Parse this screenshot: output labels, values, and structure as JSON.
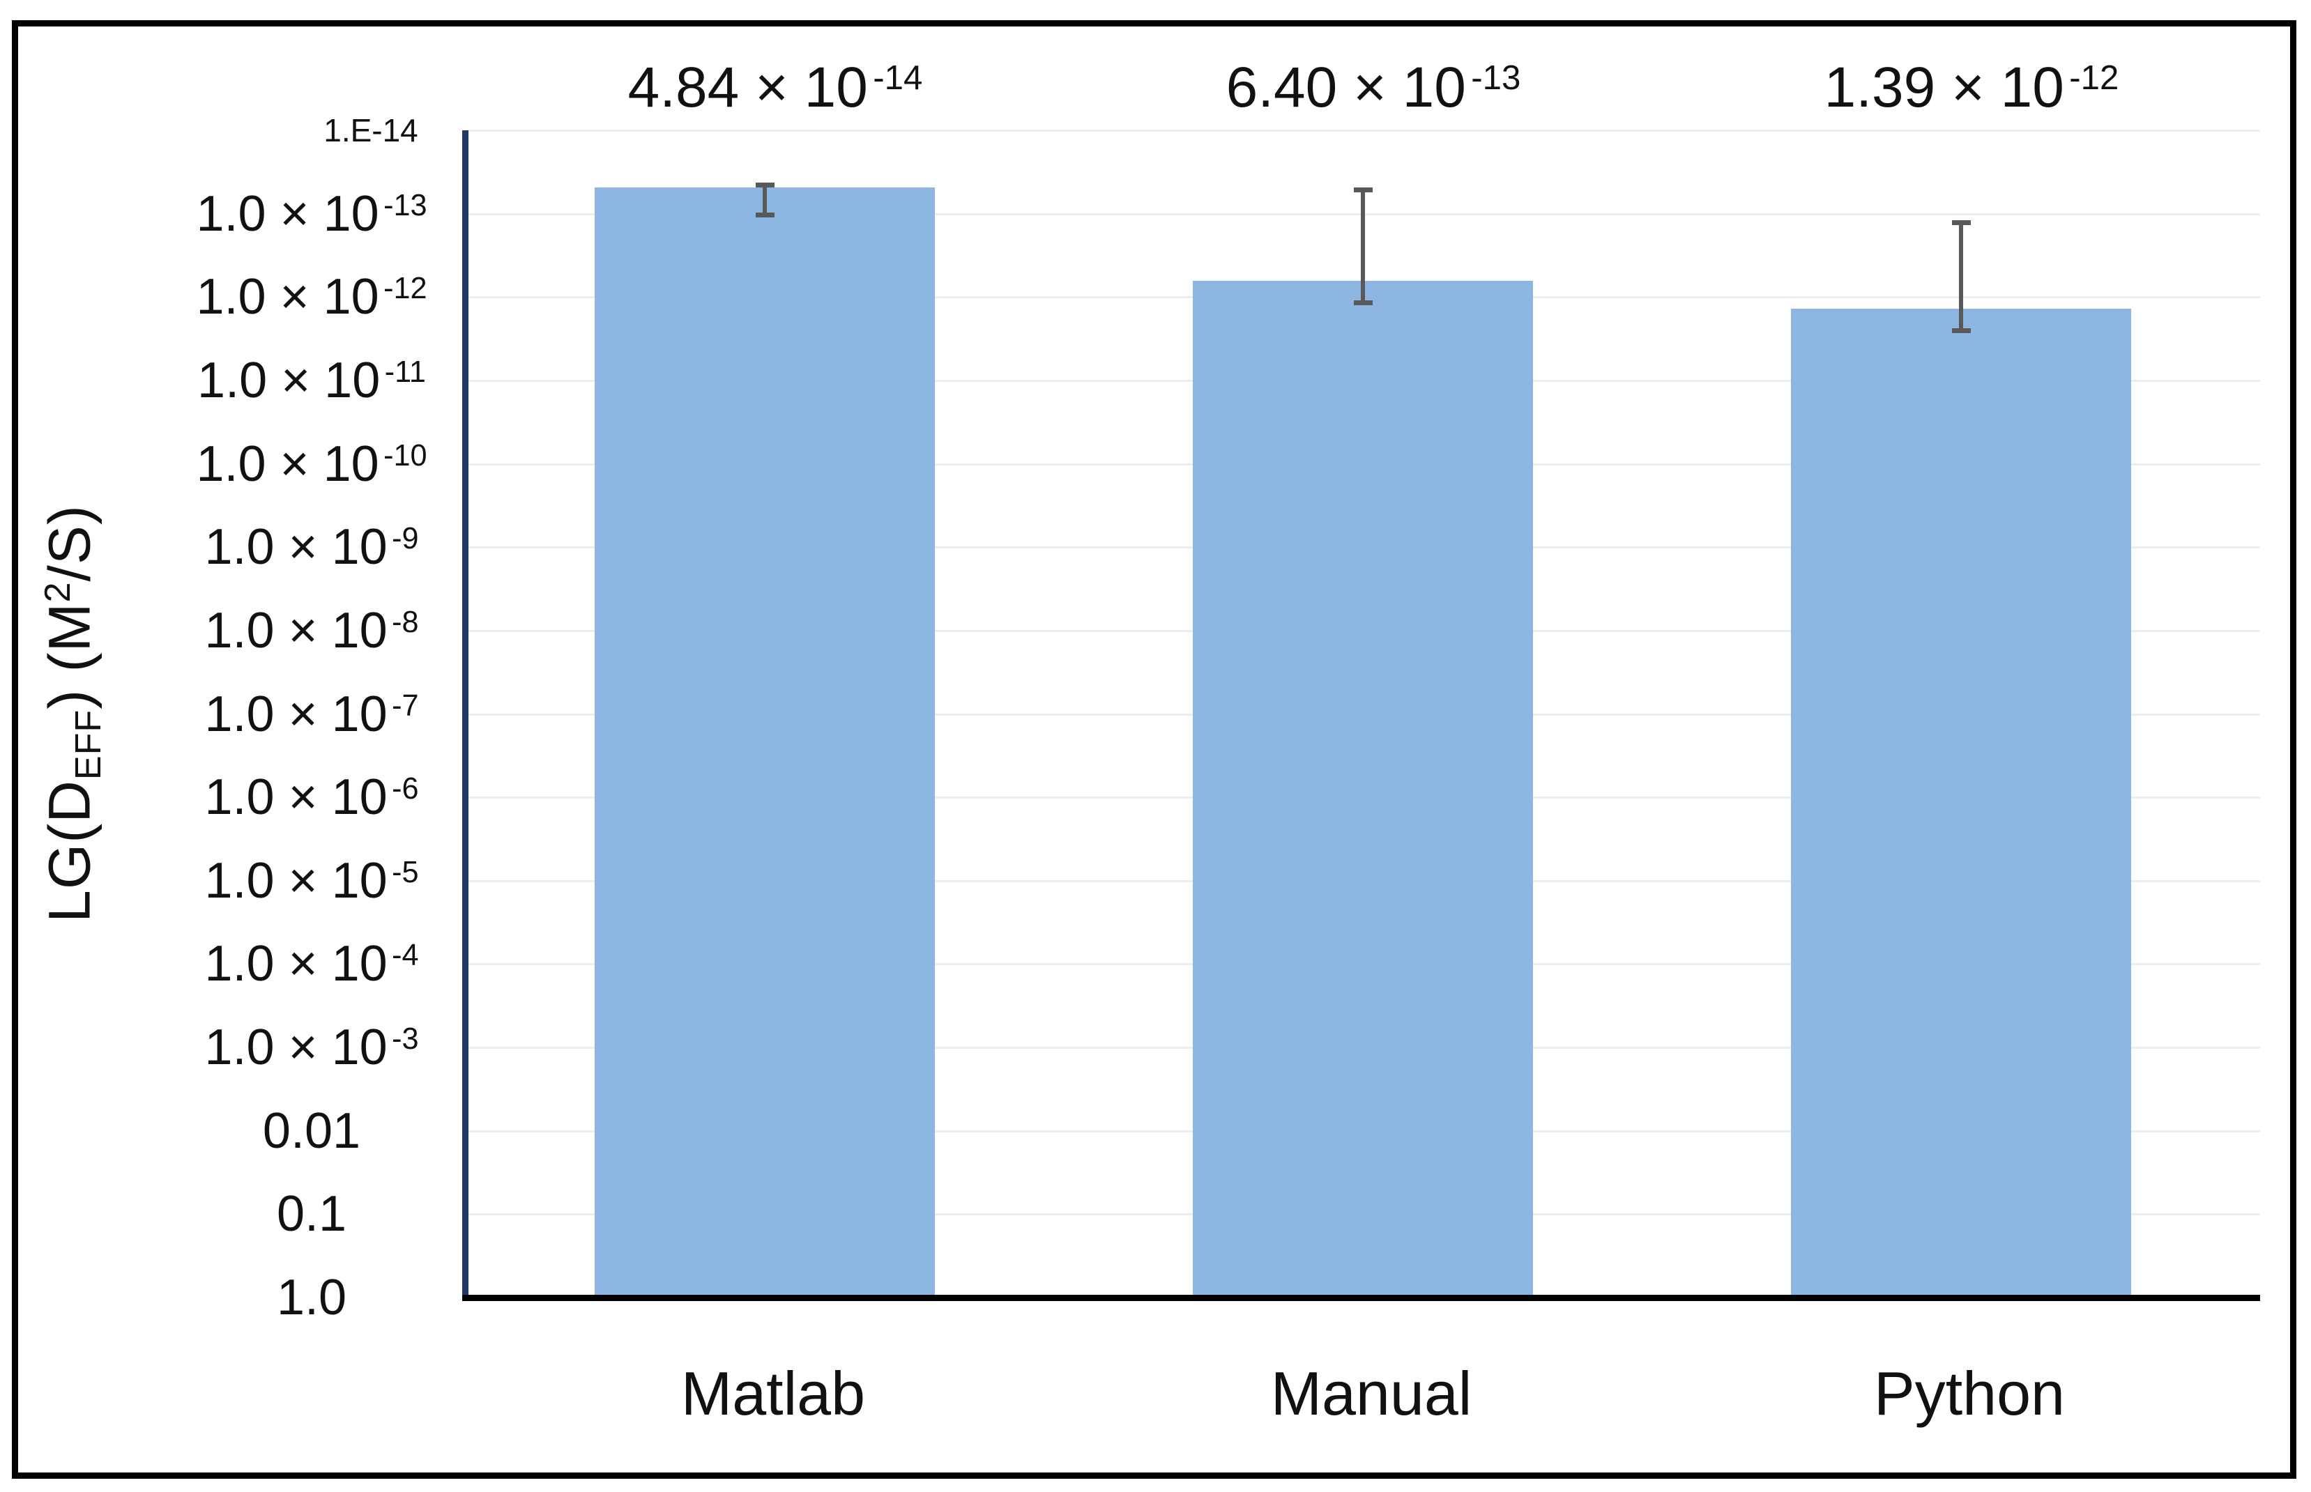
{
  "chart_data": {
    "type": "bar",
    "title": "",
    "categories": [
      "Matlab",
      "Manual",
      "Python"
    ],
    "values": [
      4.84e-14,
      6.4e-13,
      1.39e-12
    ],
    "value_labels": [
      {
        "mantissa": "4.84 × 10",
        "exponent": "-14"
      },
      {
        "mantissa": "6.40 × 10",
        "exponent": "-13"
      },
      {
        "mantissa": "1.39 × 10",
        "exponent": "-12"
      }
    ],
    "error_bars": [
      {
        "upper_value": 4.5e-14,
        "lower_value": 1.03e-13
      },
      {
        "upper_value": 5.2e-14,
        "lower_value": 1.18e-12
      },
      {
        "upper_value": 1.29e-13,
        "lower_value": 2.55e-12
      }
    ],
    "y_axis": {
      "scale": "log10-inverted",
      "top_value": 1e-14,
      "bottom_value": 1.0,
      "decades": 14,
      "title_parts": {
        "pre": "LG(D",
        "sub": "EFF",
        "mid": ") (M",
        "sup": "2",
        "post": "/S)"
      },
      "ticks": [
        {
          "text": "1.E-14",
          "exp": "",
          "small": true
        },
        {
          "text": "1.0 × 10",
          "exp": "-13",
          "small": false
        },
        {
          "text": "1.0 × 10",
          "exp": "-12",
          "small": false
        },
        {
          "text": "1.0 × 10",
          "exp": "-11",
          "small": false
        },
        {
          "text": "1.0 × 10",
          "exp": "-10",
          "small": false
        },
        {
          "text": "1.0 × 10",
          "exp": "-9",
          "small": false
        },
        {
          "text": "1.0 × 10",
          "exp": "-8",
          "small": false
        },
        {
          "text": "1.0 × 10",
          "exp": "-7",
          "small": false
        },
        {
          "text": "1.0 × 10",
          "exp": "-6",
          "small": false
        },
        {
          "text": "1.0 × 10",
          "exp": "-5",
          "small": false
        },
        {
          "text": "1.0 × 10",
          "exp": "-4",
          "small": false
        },
        {
          "text": "1.0 × 10",
          "exp": "-3",
          "small": false
        },
        {
          "text": "0.01",
          "exp": "",
          "small": false
        },
        {
          "text": "0.1",
          "exp": "",
          "small": false
        },
        {
          "text": "1.0",
          "exp": "",
          "small": false
        }
      ]
    },
    "x_axis": {
      "labels": [
        "Matlab",
        "Manual",
        "Python"
      ]
    },
    "grid": true,
    "legend": null,
    "colors": {
      "bar_fill": "#8DB6E2",
      "y_axis_line": "#1F3864",
      "x_axis_line": "#000000",
      "error_bar": "#595959",
      "gridline": "#EDEDED",
      "text": "#111111",
      "frame": "#000000",
      "background": "#FFFFFF"
    }
  }
}
